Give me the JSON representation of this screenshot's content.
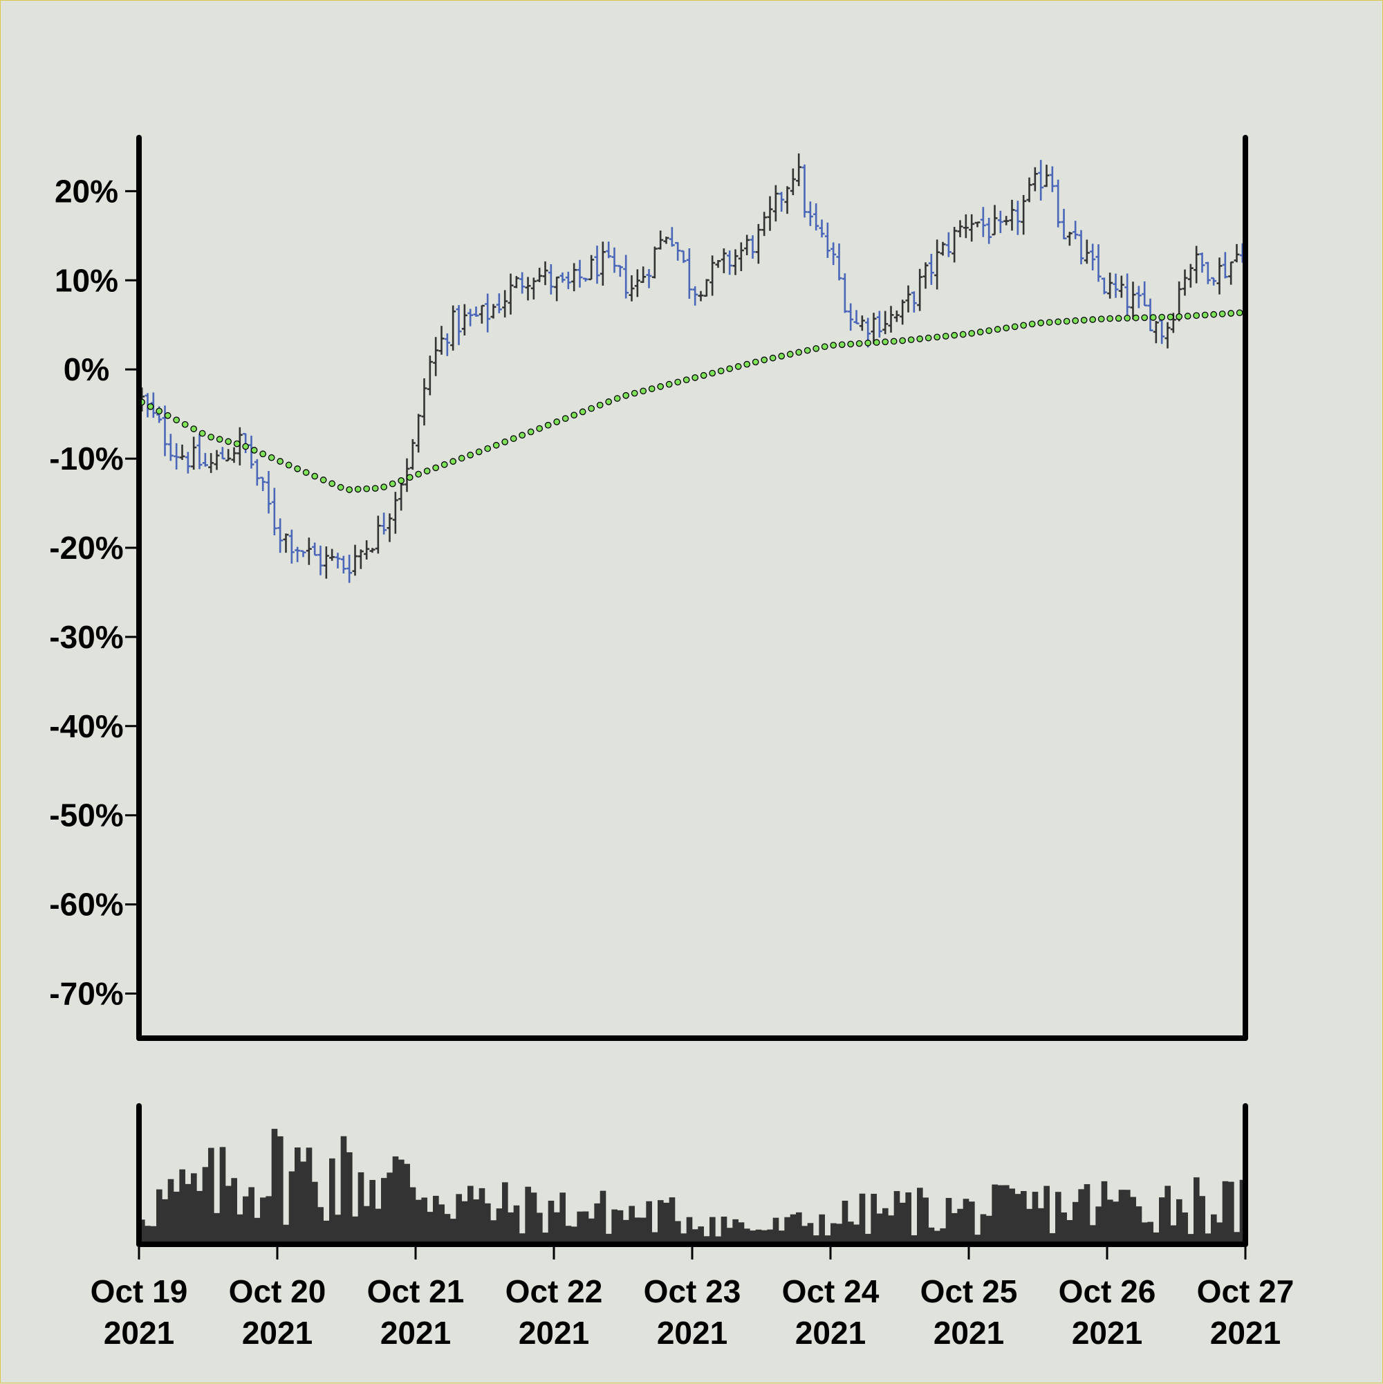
{
  "chart_data": {
    "type": "ohlc",
    "title": "",
    "xlabel": "",
    "ylabel": "",
    "x_range": [
      "2021-10-19 00:00",
      "2021-10-27 00:00"
    ],
    "bar_interval_minutes": 60,
    "ylim": [
      -75,
      26
    ],
    "y_ticks": [
      20,
      10,
      0,
      -10,
      -20,
      -30,
      -40,
      -50,
      -60,
      -70
    ],
    "y_tick_labels": [
      "20%",
      "10%",
      "0%",
      "-10%",
      "-20%",
      "-30%",
      "-40%",
      "-50%",
      "-60%",
      "-70%"
    ],
    "x_tick_labels": [
      {
        "line1": "Oct 19",
        "line2": "2021"
      },
      {
        "line1": "Oct 20",
        "line2": "2021"
      },
      {
        "line1": "Oct 21",
        "line2": "2021"
      },
      {
        "line1": "Oct 22",
        "line2": "2021"
      },
      {
        "line1": "Oct 23",
        "line2": "2021"
      },
      {
        "line1": "Oct 24",
        "line2": "2021"
      },
      {
        "line1": "Oct 25",
        "line2": "2021"
      },
      {
        "line1": "Oct 26",
        "line2": "2021"
      },
      {
        "line1": "Oct 27",
        "line2": "2021"
      }
    ],
    "close_keypoints": [
      [
        "2021-10-19 00:00",
        -3
      ],
      [
        "2021-10-19 06:00",
        -9
      ],
      [
        "2021-10-19 12:00",
        -11
      ],
      [
        "2021-10-19 18:00",
        -8
      ],
      [
        "2021-10-20 00:00",
        -18
      ],
      [
        "2021-10-20 06:00",
        -21
      ],
      [
        "2021-10-20 12:00",
        -22
      ],
      [
        "2021-10-20 18:00",
        -18
      ],
      [
        "2021-10-21 00:00",
        -8
      ],
      [
        "2021-10-21 02:00",
        0
      ],
      [
        "2021-10-21 06:00",
        5
      ],
      [
        "2021-10-21 12:00",
        6
      ],
      [
        "2021-10-21 20:00",
        11
      ],
      [
        "2021-10-22 02:00",
        9
      ],
      [
        "2021-10-22 08:00",
        12
      ],
      [
        "2021-10-22 14:00",
        9
      ],
      [
        "2021-10-22 20:00",
        16
      ],
      [
        "2021-10-23 00:00",
        9
      ],
      [
        "2021-10-23 06:00",
        12
      ],
      [
        "2021-10-23 12:00",
        15
      ],
      [
        "2021-10-23 18:00",
        23
      ],
      [
        "2021-10-23 20:00",
        17
      ],
      [
        "2021-10-24 00:00",
        13
      ],
      [
        "2021-10-24 04:00",
        5
      ],
      [
        "2021-10-24 12:00",
        6
      ],
      [
        "2021-10-24 18:00",
        12
      ],
      [
        "2021-10-25 00:00",
        17
      ],
      [
        "2021-10-25 06:00",
        15
      ],
      [
        "2021-10-25 14:00",
        23
      ],
      [
        "2021-10-25 16:00",
        16
      ],
      [
        "2021-10-26 00:00",
        9
      ],
      [
        "2021-10-26 06:00",
        7
      ],
      [
        "2021-10-26 10:00",
        4
      ],
      [
        "2021-10-26 14:00",
        12
      ],
      [
        "2021-10-26 20:00",
        11
      ],
      [
        "2021-10-27 00:00",
        14
      ]
    ],
    "moving_average_keypoints": [
      [
        "2021-10-19 00:00",
        -3.5
      ],
      [
        "2021-10-19 12:00",
        -7.5
      ],
      [
        "2021-10-19 18:00",
        -8.5
      ],
      [
        "2021-10-20 12:00",
        -13.5
      ],
      [
        "2021-10-20 18:00",
        -13.3
      ],
      [
        "2021-10-21 12:00",
        -9
      ],
      [
        "2021-10-22 12:00",
        -3
      ],
      [
        "2021-10-23 00:00",
        -1
      ],
      [
        "2021-10-23 12:00",
        1
      ],
      [
        "2021-10-24 00:00",
        2.7
      ],
      [
        "2021-10-24 12:00",
        3.2
      ],
      [
        "2021-10-25 00:00",
        4
      ],
      [
        "2021-10-25 12:00",
        5.2
      ],
      [
        "2021-10-26 00:00",
        5.7
      ],
      [
        "2021-10-26 12:00",
        5.9
      ],
      [
        "2021-10-27 00:00",
        6.4
      ]
    ],
    "volume_keypoints": [
      [
        "2021-10-19 00:00",
        0.3
      ],
      [
        "2021-10-19 12:00",
        0.45
      ],
      [
        "2021-10-20 00:00",
        0.6
      ],
      [
        "2021-10-20 12:00",
        0.55
      ],
      [
        "2021-10-21 00:00",
        0.5
      ],
      [
        "2021-10-21 12:00",
        0.3
      ],
      [
        "2021-10-22 00:00",
        0.28
      ],
      [
        "2021-10-22 12:00",
        0.25
      ],
      [
        "2021-10-23 00:00",
        0.22
      ],
      [
        "2021-10-23 12:00",
        0.12
      ],
      [
        "2021-10-24 00:00",
        0.2
      ],
      [
        "2021-10-24 12:00",
        0.28
      ],
      [
        "2021-10-25 00:00",
        0.26
      ],
      [
        "2021-10-25 12:00",
        0.3
      ],
      [
        "2021-10-26 00:00",
        0.33
      ],
      [
        "2021-10-26 12:00",
        0.35
      ],
      [
        "2021-10-27 00:00",
        0.3
      ]
    ],
    "volume_scale_max": 1.0,
    "colors": {
      "background": "#dfe3dc",
      "up_bar": "#333333",
      "down_bar": "#4a66b8",
      "moving_average_fill": "#7fe35a",
      "moving_average_edge": "#000000",
      "volume_bar": "#333333",
      "axis": "#000000"
    },
    "grid": false,
    "legend": "none"
  }
}
